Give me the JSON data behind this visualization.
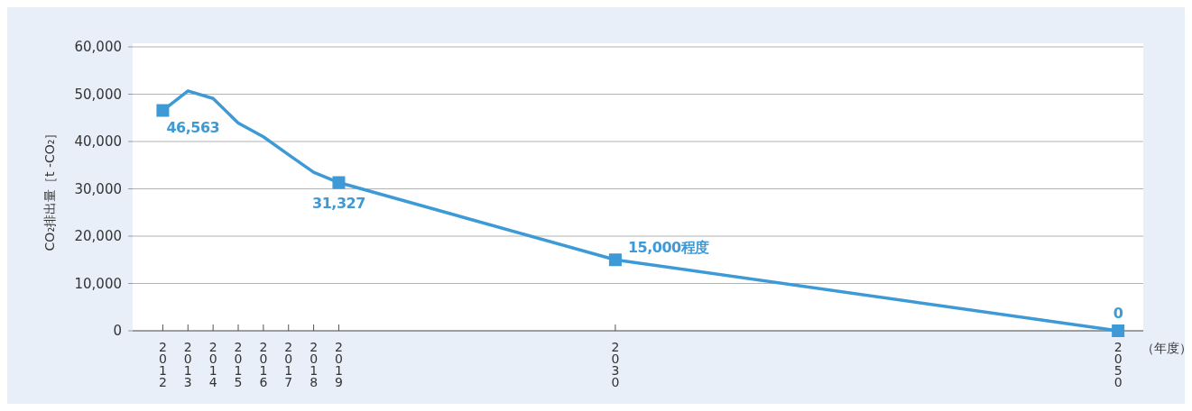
{
  "chart_data": {
    "type": "line",
    "ylabel": "CO₂排出量［t -CO₂］",
    "xlabel": "（年度）",
    "x": [
      2012,
      2013,
      2014,
      2015,
      2016,
      2017,
      2018,
      2019,
      2030,
      2050
    ],
    "series": [
      {
        "color": "#3d9ad6",
        "values": [
          46563,
          50700,
          49100,
          43900,
          41000,
          37200,
          33500,
          31327,
          15000,
          0
        ],
        "value_labels": [
          "46,563",
          null,
          null,
          null,
          null,
          null,
          null,
          "31,327",
          "15,000程度",
          "0"
        ]
      }
    ],
    "xlim": [
      2010.8,
      2051
    ],
    "xticks": [
      2012,
      2013,
      2014,
      2015,
      2016,
      2017,
      2018,
      2019,
      2030,
      2050
    ],
    "ylim": [
      0,
      60000
    ],
    "yticks": [
      {
        "value": 0,
        "label": "0"
      },
      {
        "value": 10000,
        "label": "10,000"
      },
      {
        "value": 20000,
        "label": "20,000"
      },
      {
        "value": 30000,
        "label": "30,000"
      },
      {
        "value": 40000,
        "label": "40,000"
      },
      {
        "value": 50000,
        "label": "50,000"
      },
      {
        "value": 60000,
        "label": "60,000"
      }
    ],
    "grid": "y",
    "line_style": "solid"
  }
}
